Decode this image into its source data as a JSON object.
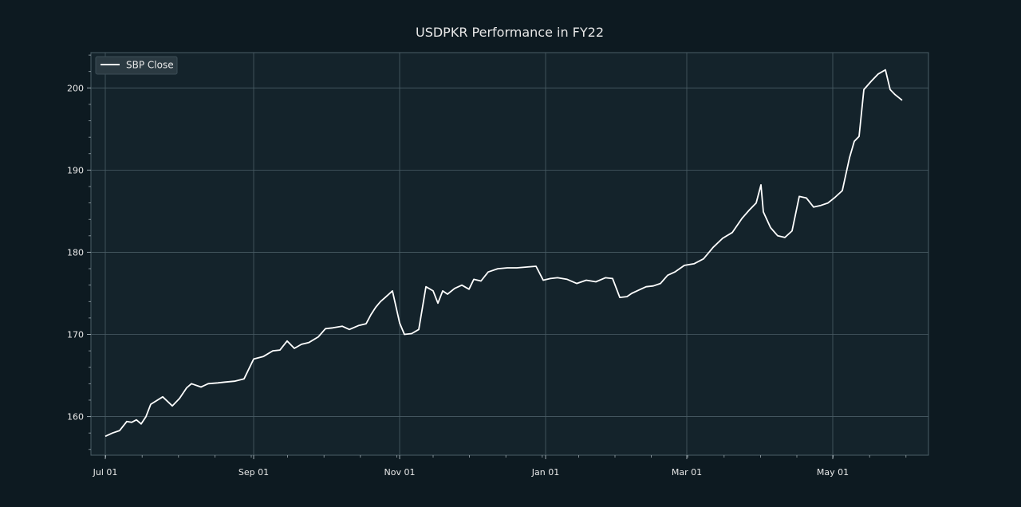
{
  "chart_data": {
    "type": "line",
    "title": "USDPKR Performance in FY22",
    "xlabel": "",
    "ylabel": "",
    "x_tick_labels": [
      "Jul 01",
      "Sep 01",
      "Nov 01",
      "Jan 01",
      "Mar 01",
      "May 01"
    ],
    "x_tick_dates": [
      "2021-07-01",
      "2021-09-01",
      "2021-11-01",
      "2022-01-01",
      "2022-03-01",
      "2022-05-01"
    ],
    "xlim": [
      "2021-06-25",
      "2022-06-10"
    ],
    "ylim": [
      155.3,
      204.3
    ],
    "y_ticks": [
      160,
      170,
      180,
      190,
      200
    ],
    "grid": true,
    "legend_position": "top-left",
    "colors": {
      "figure_bg": "#0d1a21",
      "axes_bg": "#14232b",
      "grid": "#4a5d66",
      "line": "#ffffff",
      "text": "#e8e8e8"
    },
    "series": [
      {
        "name": "SBP Close",
        "x": [
          "2021-07-01",
          "2021-07-04",
          "2021-07-07",
          "2021-07-10",
          "2021-07-12",
          "2021-07-14",
          "2021-07-16",
          "2021-07-18",
          "2021-07-20",
          "2021-07-25",
          "2021-07-29",
          "2021-08-01",
          "2021-08-04",
          "2021-08-06",
          "2021-08-10",
          "2021-08-13",
          "2021-08-17",
          "2021-08-20",
          "2021-08-24",
          "2021-08-28",
          "2021-09-01",
          "2021-09-05",
          "2021-09-09",
          "2021-09-12",
          "2021-09-15",
          "2021-09-18",
          "2021-09-21",
          "2021-09-24",
          "2021-09-28",
          "2021-10-01",
          "2021-10-04",
          "2021-10-08",
          "2021-10-11",
          "2021-10-15",
          "2021-10-18",
          "2021-10-20",
          "2021-10-22",
          "2021-10-24",
          "2021-10-26",
          "2021-10-29",
          "2021-11-01",
          "2021-11-03",
          "2021-11-06",
          "2021-11-09",
          "2021-11-12",
          "2021-11-15",
          "2021-11-17",
          "2021-11-19",
          "2021-11-21",
          "2021-11-24",
          "2021-11-27",
          "2021-11-30",
          "2021-12-02",
          "2021-12-05",
          "2021-12-08",
          "2021-12-12",
          "2021-12-16",
          "2021-12-20",
          "2021-12-24",
          "2021-12-28",
          "2021-12-31",
          "2022-01-03",
          "2022-01-06",
          "2022-01-10",
          "2022-01-14",
          "2022-01-18",
          "2022-01-22",
          "2022-01-26",
          "2022-01-29",
          "2022-02-01",
          "2022-02-04",
          "2022-02-06",
          "2022-02-09",
          "2022-02-12",
          "2022-02-15",
          "2022-02-18",
          "2022-02-21",
          "2022-02-24",
          "2022-02-28",
          "2022-03-04",
          "2022-03-08",
          "2022-03-12",
          "2022-03-16",
          "2022-03-20",
          "2022-03-24",
          "2022-03-27",
          "2022-03-30",
          "2022-04-01",
          "2022-04-02",
          "2022-04-05",
          "2022-04-08",
          "2022-04-11",
          "2022-04-14",
          "2022-04-17",
          "2022-04-20",
          "2022-04-23",
          "2022-04-26",
          "2022-04-29",
          "2022-05-02",
          "2022-05-05",
          "2022-05-08",
          "2022-05-10",
          "2022-05-12",
          "2022-05-14",
          "2022-05-17",
          "2022-05-20",
          "2022-05-23",
          "2022-05-25",
          "2022-05-27",
          "2022-05-30"
        ],
        "values": [
          157.6,
          158.0,
          158.3,
          159.4,
          159.3,
          159.6,
          159.1,
          160.0,
          161.5,
          162.4,
          161.3,
          162.2,
          163.5,
          164.0,
          163.6,
          164.0,
          164.1,
          164.2,
          164.3,
          164.6,
          167.0,
          167.3,
          168.0,
          168.1,
          169.2,
          168.3,
          168.8,
          169.0,
          169.7,
          170.7,
          170.8,
          171.0,
          170.6,
          171.1,
          171.3,
          172.4,
          173.3,
          174.0,
          174.5,
          175.3,
          171.4,
          170.0,
          170.1,
          170.6,
          175.8,
          175.3,
          173.8,
          175.3,
          174.9,
          175.6,
          176.0,
          175.5,
          176.7,
          176.5,
          177.6,
          178.0,
          178.1,
          178.1,
          178.2,
          178.3,
          176.6,
          176.8,
          176.9,
          176.7,
          176.2,
          176.6,
          176.4,
          176.9,
          176.8,
          174.5,
          174.6,
          175.0,
          175.4,
          175.8,
          175.9,
          176.2,
          177.2,
          177.6,
          178.4,
          178.6,
          179.2,
          180.6,
          181.7,
          182.4,
          184.1,
          185.1,
          186.0,
          188.2,
          184.9,
          183.0,
          182.0,
          181.8,
          182.6,
          186.8,
          186.6,
          185.5,
          185.7,
          186.0,
          186.7,
          187.5,
          191.5,
          193.5,
          194.1,
          199.8,
          200.8,
          201.7,
          202.2,
          199.8,
          199.2,
          198.5
        ]
      }
    ]
  }
}
